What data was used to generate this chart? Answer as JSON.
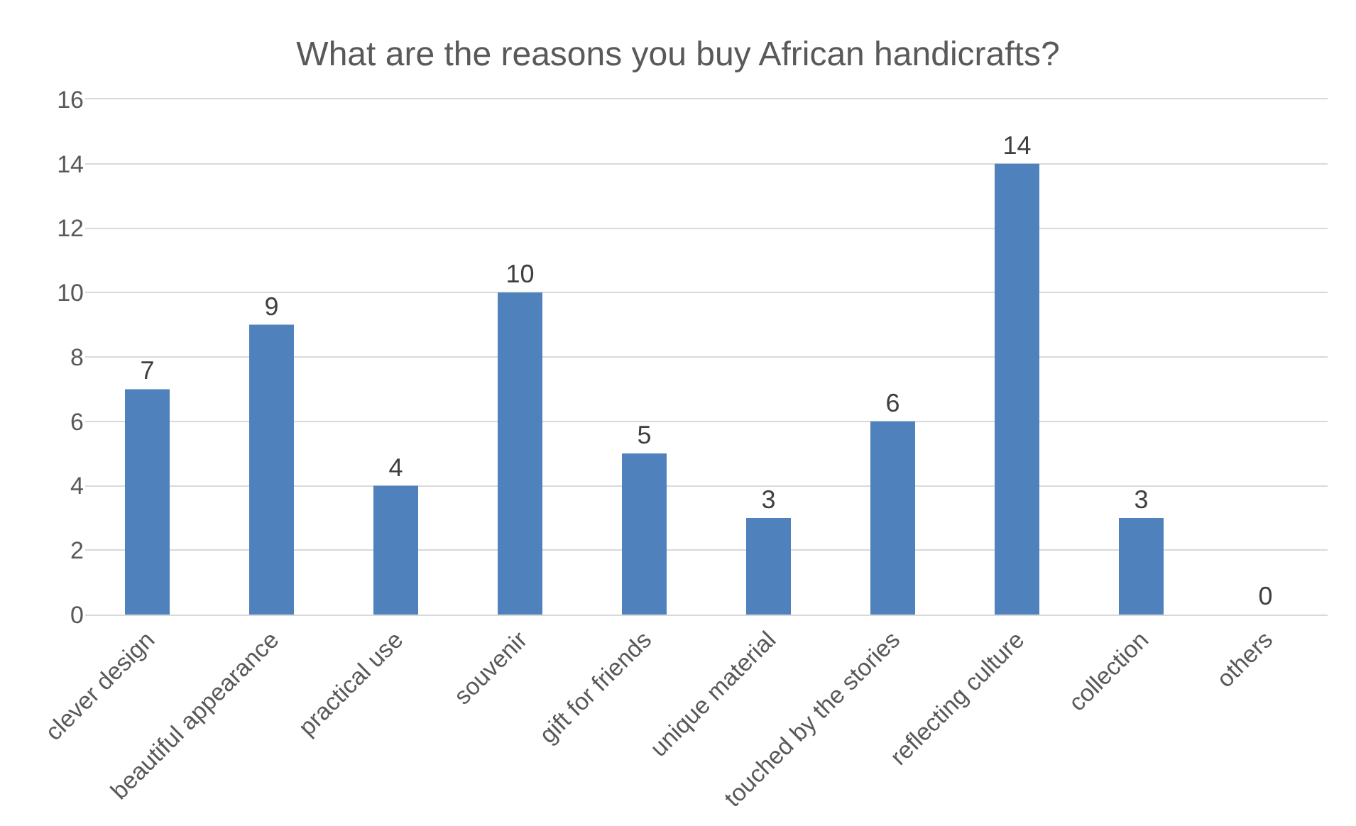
{
  "chart_data": {
    "type": "bar",
    "title": "What are the reasons you buy African handicrafts?",
    "categories": [
      "clever design",
      "beautiful appearance",
      "practical use",
      "souvenir",
      "gift for friends",
      "unique material",
      "touched by the stories",
      "reflecting culture",
      "collection",
      "others"
    ],
    "values": [
      7,
      9,
      4,
      10,
      5,
      3,
      6,
      14,
      3,
      0
    ],
    "color": "#4f81bd",
    "ylim": [
      0,
      16
    ],
    "yticks": [
      0,
      2,
      4,
      6,
      8,
      10,
      12,
      14,
      16
    ],
    "grid": "y",
    "data_labels": true,
    "legend": false
  }
}
